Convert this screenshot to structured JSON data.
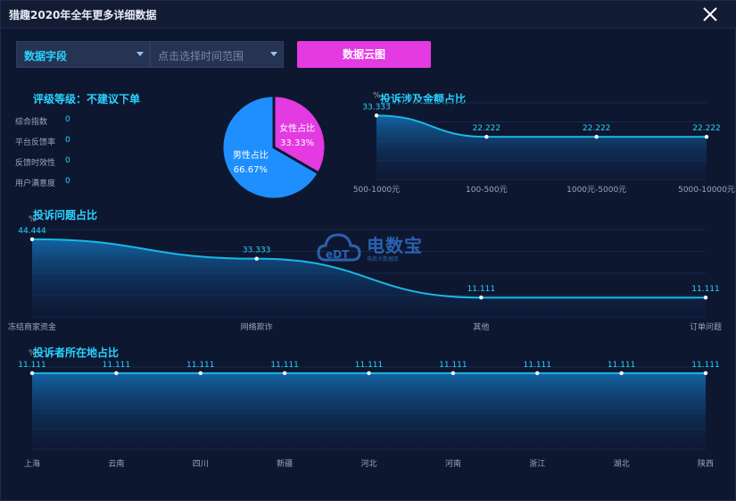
{
  "window": {
    "title": "猎趣2020年全年更多详细数据"
  },
  "toolbar": {
    "field_select": "数据字段",
    "time_select_placeholder": "点击选择时间范围",
    "cloud_button": "数据云图"
  },
  "rating": {
    "title": "评级等级：不建议下单",
    "items": [
      {
        "name": "综合指数",
        "value": "0"
      },
      {
        "name": "平台反馈率",
        "value": "0"
      },
      {
        "name": "反馈时效性",
        "value": "0"
      },
      {
        "name": "用户满意度",
        "value": "0"
      }
    ]
  },
  "watermark": {
    "title": "电数宝",
    "subtitle": "电商大数据库",
    "logo_text": "eDT"
  },
  "colors": {
    "accent": "#29d3ff",
    "female": "#e33ae1",
    "male": "#1f8fff",
    "button": "#e33ae1"
  },
  "chart_data": [
    {
      "id": "gender",
      "type": "pie",
      "slices": [
        {
          "name": "女性占比",
          "value": 33.33,
          "label": "33.33%"
        },
        {
          "name": "男性占比",
          "value": 66.67,
          "label": "66.67%"
        }
      ]
    },
    {
      "id": "amount",
      "type": "area",
      "title": "投诉涉及金额占比",
      "unit": "%",
      "categories": [
        "500-1000元",
        "100-500元",
        "1000元-5000元",
        "5000-10000元"
      ],
      "values": [
        33.333,
        22.222,
        22.222,
        22.222
      ],
      "labels": [
        "33.333",
        "22.222",
        "22.222",
        "22.222"
      ],
      "ylim": [
        0,
        40
      ]
    },
    {
      "id": "issue",
      "type": "area",
      "title": "投诉问题占比",
      "unit": "%",
      "categories": [
        "冻结商家资金",
        "网络欺诈",
        "其他",
        "订单问题"
      ],
      "values": [
        44.444,
        33.333,
        11.111,
        11.111
      ],
      "labels": [
        "44.444",
        "33.333",
        "11.111",
        "11.111"
      ],
      "ylim": [
        0,
        50
      ]
    },
    {
      "id": "region",
      "type": "area",
      "title": "投诉者所在地占比",
      "unit": "%",
      "categories": [
        "上海",
        "云南",
        "四川",
        "新疆",
        "河北",
        "河南",
        "浙江",
        "湖北",
        "陕西"
      ],
      "values": [
        11.111,
        11.111,
        11.111,
        11.111,
        11.111,
        11.111,
        11.111,
        11.111,
        11.111
      ],
      "labels": [
        "11.111",
        "11.111",
        "11.111",
        "11.111",
        "11.111",
        "11.111",
        "11.111",
        "11.111",
        "11.111"
      ],
      "ylim": [
        0,
        12
      ]
    }
  ]
}
